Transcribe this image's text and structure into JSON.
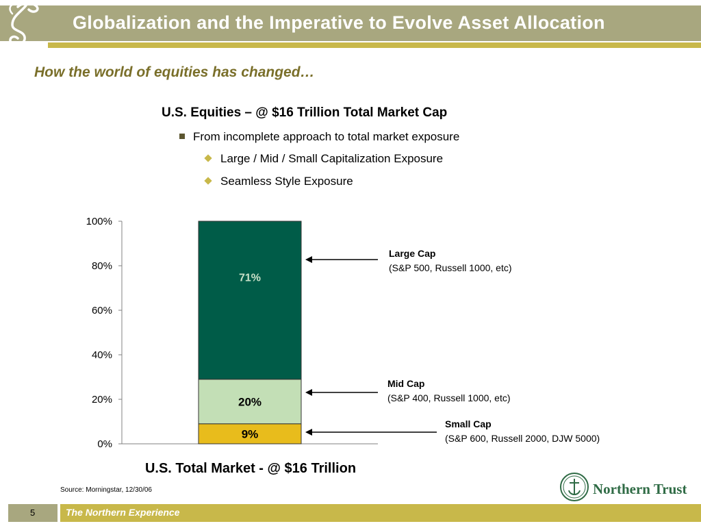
{
  "header": {
    "title": "Globalization and the Imperative to Evolve Asset Allocation",
    "subtitle": "How the world of equities has changed…"
  },
  "content": {
    "heading": "U.S. Equities – @ $16 Trillion Total Market Cap",
    "bullet": "From incomplete approach to total market exposure",
    "sub_bullets": [
      "Large / Mid / Small Capitalization Exposure",
      "Seamless Style Exposure"
    ]
  },
  "chart_data": {
    "type": "bar",
    "stacked": true,
    "categories": [
      "U.S. Total Market - @ $16 Trillion"
    ],
    "xlabel": "U.S. Total Market - @ $16 Trillion",
    "ylim": [
      0,
      100
    ],
    "yticks": [
      "0%",
      "20%",
      "40%",
      "60%",
      "80%",
      "100%"
    ],
    "grid": false,
    "series": [
      {
        "name": "Small Cap",
        "values": [
          9
        ],
        "label": "9%",
        "color": "#e8bc1c",
        "label_color": "#000000"
      },
      {
        "name": "Mid Cap",
        "values": [
          20
        ],
        "label": "20%",
        "color": "#c3dfb6",
        "label_color": "#000000"
      },
      {
        "name": "Large Cap",
        "values": [
          71
        ],
        "label": "71%",
        "color": "#005c48",
        "label_color": "#c8e0c8"
      }
    ],
    "annotations": [
      {
        "series": "Large Cap",
        "title": "Large Cap",
        "detail": "(S&P 500, Russell 1000, etc)"
      },
      {
        "series": "Mid Cap",
        "title": "Mid Cap",
        "detail": "(S&P 400, Russell 1000, etc)"
      },
      {
        "series": "Small Cap",
        "title": "Small Cap",
        "detail": "(S&P 600, Russell 2000, DJW 5000)"
      }
    ]
  },
  "source": "Source: Morningstar, 12/30/06",
  "logo": {
    "name": "Northern Trust",
    "icon": "northern-trust-seal-icon"
  },
  "footer": {
    "page": "5",
    "tagline": "The Northern Experience"
  },
  "colors": {
    "header": "#a8a77f",
    "accent": "#c8b84a",
    "subtitle": "#7a6f2a",
    "brand_green": "#2f6b45"
  }
}
